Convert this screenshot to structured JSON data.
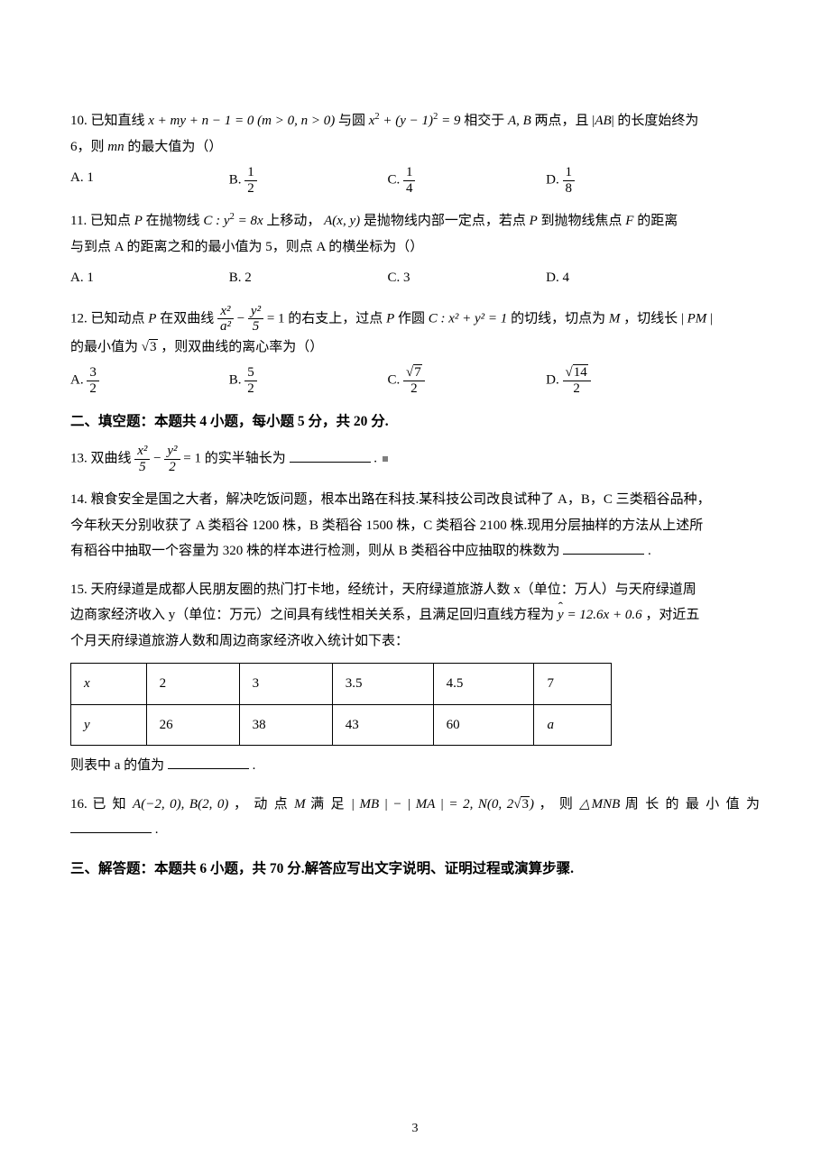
{
  "page_number": "3",
  "q10": {
    "num": "10.",
    "text_a": "已知直线 ",
    "eq1": "x + my + n − 1 = 0 (m > 0, n > 0)",
    "text_b": " 与圆 ",
    "eq2_a": "x",
    "eq2_b": " + (y − 1)",
    "eq2_c": " = 9",
    "text_c": " 相交于 ",
    "eq3": "A, B",
    "text_d": " 两点，且 ",
    "eq4_open": "|",
    "eq4_mid": "AB",
    "eq4_close": "|",
    "text_e": " 的长度始终为",
    "line2_a": "6，则 ",
    "line2_b": "mn",
    "line2_c": " 的最大值为（）",
    "opt_a": "A. 1",
    "opt_b_label": "B. ",
    "opt_b_num": "1",
    "opt_b_den": "2",
    "opt_c_label": "C. ",
    "opt_c_num": "1",
    "opt_c_den": "4",
    "opt_d_label": "D. ",
    "opt_d_num": "1",
    "opt_d_den": "8"
  },
  "q11": {
    "num": "11.",
    "text_a": "已知点 ",
    "P": "P",
    "text_b": " 在抛物线 ",
    "curve": "C : y",
    "curve_eq": " = 8x",
    "text_c": " 上移动，",
    "Axy": "A(x, y)",
    "text_d": " 是抛物线内部一定点，若点 ",
    "P2": "P",
    "text_e": " 到抛物线焦点 ",
    "F": "F",
    "text_f": " 的距离",
    "line2": "与到点 A 的距离之和的最小值为 5，则点 A 的横坐标为（）",
    "opt_a": "A. 1",
    "opt_b": "B. 2",
    "opt_c": "C. 3",
    "opt_d": "D. 4"
  },
  "q12": {
    "num": "12.",
    "text_a": "已知动点 ",
    "P": "P",
    "text_b": " 在双曲线 ",
    "f1_num": "x²",
    "f1_den": "a²",
    "minus": " − ",
    "f2_num": "y²",
    "f2_den": "5",
    "eq1": " = 1",
    "text_c": " 的右支上，过点 ",
    "P2": "P",
    "text_d": " 作圆 ",
    "circ": "C : x² + y² = 1",
    "text_e": " 的切线，切点为 ",
    "M": "M",
    "text_f": "，切线长 |",
    "PM": "PM",
    "text_g": "|",
    "line2_a": "的最小值为 ",
    "sqrt3": "3",
    "line2_b": "，则双曲线的离心率为（）",
    "opt_a_label": "A. ",
    "opt_a_num": "3",
    "opt_a_den": "2",
    "opt_b_label": "B. ",
    "opt_b_num": "5",
    "opt_b_den": "2",
    "opt_c_label": "C. ",
    "opt_c_num_r": "7",
    "opt_c_den": "2",
    "opt_d_label": "D. ",
    "opt_d_num_r": "14",
    "opt_d_den": "2"
  },
  "section2": "二、填空题：本题共 4 小题，每小题 5 分，共 20 分.",
  "q13": {
    "num": "13.",
    "text_a": "双曲线 ",
    "f1_num": "x²",
    "f1_den": "5",
    "minus": " − ",
    "f2_num": "y²",
    "f2_den": "2",
    "eq": " = 1",
    "text_b": " 的实半轴长为",
    "period": "."
  },
  "q14": {
    "num": "14.",
    "line1": "粮食安全是国之大者，解决吃饭问题，根本出路在科技.某科技公司改良试种了 A，B，C 三类稻谷品种，",
    "line2": "今年秋天分别收获了 A 类稻谷 1200 株，B 类稻谷 1500 株，C 类稻谷 2100 株.现用分层抽样的方法从上述所",
    "line3_a": "有稻谷中抽取一个容量为 320 株的样本进行检测，则从 B 类稻谷中应抽取的株数为",
    "line3_b": "."
  },
  "q15": {
    "num": "15.",
    "line1": "天府绿道是成都人民朋友圈的热门打卡地，经统计，天府绿道旅游人数 x（单位：万人）与天府绿道周",
    "line2_a": "边商家经济收入 y（单位：万元）之间具有线性相关关系，且满足回归直线方程为 ",
    "yhat": "y",
    "reg": " = 12.6x + 0.6",
    "line2_b": "，对近五",
    "line3": "个月天府绿道旅游人数和周边商家经济收入统计如下表：",
    "table": {
      "r1": [
        "x",
        "2",
        "3",
        "3.5",
        "4.5",
        "7"
      ],
      "r2": [
        "y",
        "26",
        "38",
        "43",
        "60",
        "a"
      ]
    },
    "after_a": "则表中 a 的值为",
    "after_b": "."
  },
  "q16": {
    "num": "16.",
    "text_a": "已 知 ",
    "AB": "A(−2, 0), B(2, 0)",
    "text_b": " ， 动 点 ",
    "M": "M",
    "text_c": " 满 足 ",
    "cond": "| MB | − | MA | = 2, N(0, 2",
    "sqrt3": "3",
    "cond_end": ")",
    "text_d": " ， 则 ",
    "tri": "△MNB",
    "text_e": " 周 长 的 最 小 值 为",
    "period": "."
  },
  "section3": "三、解答题：本题共 6 小题，共 70 分.解答应写出文字说明、证明过程或演算步骤."
}
